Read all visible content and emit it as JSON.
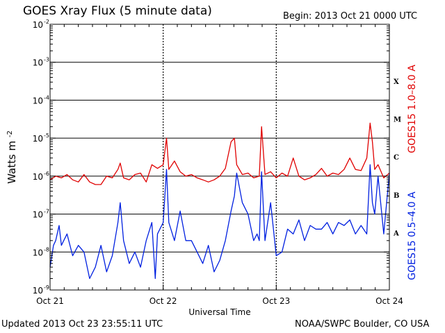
{
  "header": {
    "title": "GOES Xray Flux (5 minute data)",
    "begin": "Begin:  2013 Oct 21 0000 UTC"
  },
  "footer": {
    "updated": "Updated 2013 Oct 23 23:55:11 UTC",
    "credit": "NOAA/SWPC Boulder, CO USA"
  },
  "chart_data": {
    "type": "line",
    "title": "GOES Xray Flux (5 minute data)",
    "xlabel": "Universal Time",
    "ylabel_base": "Watts m",
    "ylabel_exp": "-2",
    "yscale": "log",
    "ylim": [
      1e-09,
      0.01
    ],
    "y_ticks": [
      {
        "value": 0.01,
        "base": "10",
        "exp": "-2"
      },
      {
        "value": 0.001,
        "base": "10",
        "exp": "-3"
      },
      {
        "value": 0.0001,
        "base": "10",
        "exp": "-4"
      },
      {
        "value": 1e-05,
        "base": "10",
        "exp": "-5"
      },
      {
        "value": 1e-06,
        "base": "10",
        "exp": "-6"
      },
      {
        "value": 1e-07,
        "base": "10",
        "exp": "-7"
      },
      {
        "value": 1e-08,
        "base": "10",
        "exp": "-8"
      },
      {
        "value": 1e-09,
        "base": "10",
        "exp": "-9"
      }
    ],
    "x_ticks": [
      "Oct 21",
      "Oct 22",
      "Oct 23",
      "Oct 24"
    ],
    "xlim_days": [
      0,
      3
    ],
    "flare_classes": [
      {
        "label": "X",
        "value": 0.00032
      },
      {
        "label": "M",
        "value": 3.2e-05
      },
      {
        "label": "C",
        "value": 3.2e-06
      },
      {
        "label": "B",
        "value": 3.2e-07
      },
      {
        "label": "A",
        "value": 3.2e-08
      }
    ],
    "grid": true,
    "series": [
      {
        "name": "GOES15 1.0–8.0 A",
        "color": "#e00000",
        "x_days": [
          0,
          0.05,
          0.1,
          0.15,
          0.2,
          0.25,
          0.3,
          0.35,
          0.4,
          0.45,
          0.5,
          0.55,
          0.6,
          0.62,
          0.65,
          0.7,
          0.75,
          0.8,
          0.85,
          0.9,
          0.95,
          1.0,
          1.03,
          1.05,
          1.1,
          1.15,
          1.2,
          1.25,
          1.3,
          1.35,
          1.4,
          1.45,
          1.5,
          1.55,
          1.6,
          1.63,
          1.65,
          1.7,
          1.75,
          1.8,
          1.85,
          1.87,
          1.9,
          1.95,
          2.0,
          2.05,
          2.1,
          2.15,
          2.2,
          2.25,
          2.3,
          2.35,
          2.4,
          2.45,
          2.5,
          2.55,
          2.6,
          2.65,
          2.7,
          2.75,
          2.8,
          2.83,
          2.85,
          2.87,
          2.9,
          2.95,
          3.0
        ],
        "values": [
          8e-07,
          1e-06,
          9e-07,
          1.1e-06,
          8e-07,
          7e-07,
          1.1e-06,
          7e-07,
          6e-07,
          6e-07,
          1e-06,
          9e-07,
          1.5e-06,
          2.2e-06,
          9e-07,
          8e-07,
          1.1e-06,
          1.2e-06,
          7e-07,
          2e-06,
          1.6e-06,
          2e-06,
          1e-05,
          1.5e-06,
          2.5e-06,
          1.3e-06,
          1e-06,
          1.1e-06,
          9e-07,
          8e-07,
          7e-07,
          8e-07,
          1e-06,
          1.6e-06,
          8e-06,
          1e-05,
          2e-06,
          1.1e-06,
          1.2e-06,
          9e-07,
          1e-06,
          2e-05,
          1.1e-06,
          1.3e-06,
          9e-07,
          1.2e-06,
          1e-06,
          3e-06,
          1e-06,
          8e-07,
          9e-07,
          1.1e-06,
          1.6e-06,
          1e-06,
          1.2e-06,
          1.1e-06,
          1.5e-06,
          3e-06,
          1.5e-06,
          1.4e-06,
          3e-06,
          2.5e-05,
          8e-06,
          1.5e-06,
          2e-06,
          9e-07,
          1.2e-06
        ]
      },
      {
        "name": "GOES15 0.5–4.0 A",
        "color": "#0020e0",
        "x_days": [
          0,
          0.03,
          0.05,
          0.08,
          0.1,
          0.15,
          0.2,
          0.25,
          0.3,
          0.35,
          0.4,
          0.45,
          0.5,
          0.55,
          0.6,
          0.62,
          0.65,
          0.7,
          0.75,
          0.8,
          0.85,
          0.9,
          0.93,
          0.95,
          1.0,
          1.03,
          1.05,
          1.1,
          1.15,
          1.2,
          1.25,
          1.3,
          1.35,
          1.4,
          1.45,
          1.5,
          1.55,
          1.6,
          1.63,
          1.65,
          1.7,
          1.75,
          1.8,
          1.83,
          1.85,
          1.87,
          1.9,
          1.95,
          2.0,
          2.05,
          2.1,
          2.15,
          2.2,
          2.25,
          2.3,
          2.35,
          2.4,
          2.45,
          2.5,
          2.55,
          2.6,
          2.65,
          2.7,
          2.75,
          2.8,
          2.83,
          2.85,
          2.87,
          2.9,
          2.95,
          3.0
        ],
        "values": [
          4e-09,
          1.5e-08,
          2e-08,
          5e-08,
          1.5e-08,
          3e-08,
          8e-09,
          1.5e-08,
          1e-08,
          2e-09,
          4e-09,
          1.5e-08,
          3e-09,
          8e-09,
          6e-08,
          2e-07,
          2e-08,
          5e-09,
          1e-08,
          4e-09,
          2e-08,
          6e-08,
          2e-09,
          3e-08,
          6e-08,
          1.5e-06,
          6e-08,
          2e-08,
          1.2e-07,
          2e-08,
          2e-08,
          1e-08,
          5e-09,
          1.5e-08,
          3e-09,
          6e-09,
          2e-08,
          1.2e-07,
          3e-07,
          1.2e-06,
          2e-07,
          1e-07,
          2e-08,
          3e-08,
          2e-08,
          1.3e-06,
          2e-08,
          2e-07,
          8e-09,
          1e-08,
          4e-08,
          3e-08,
          7e-08,
          2e-08,
          5e-08,
          4e-08,
          4e-08,
          6e-08,
          3e-08,
          6e-08,
          5e-08,
          7e-08,
          3e-08,
          5e-08,
          3e-08,
          2e-06,
          2e-07,
          1e-07,
          1e-06,
          3e-08,
          1.2e-06
        ]
      }
    ]
  }
}
